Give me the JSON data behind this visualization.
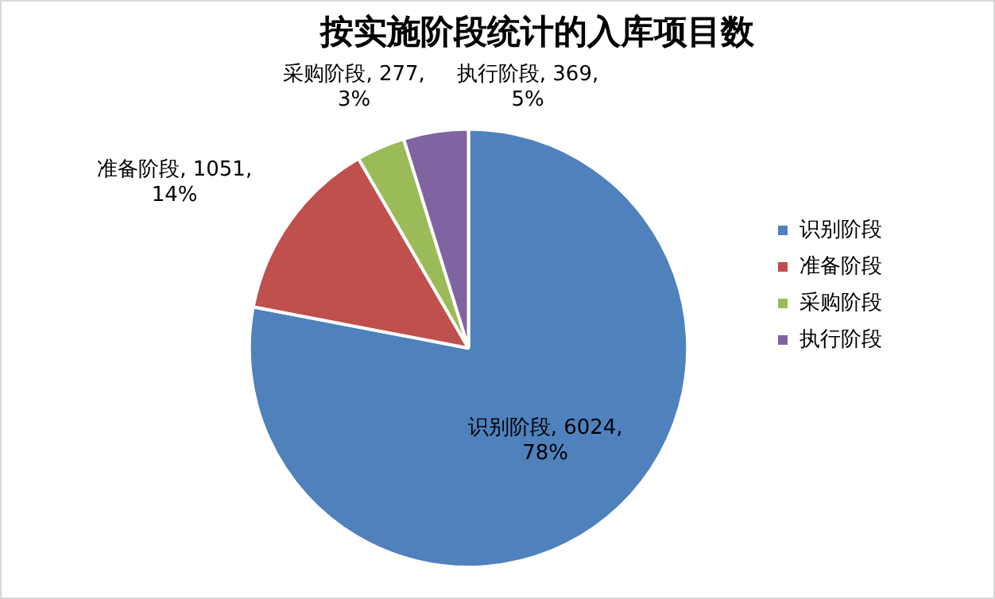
{
  "chart_data": {
    "type": "pie",
    "title": "按实施阶段统计的入库项目数",
    "categories": [
      "识别阶段",
      "准备阶段",
      "采购阶段",
      "执行阶段"
    ],
    "values": [
      6024,
      1051,
      277,
      369
    ],
    "colors": [
      "#4f81bd",
      "#c0504d",
      "#9bbb59",
      "#8064a2"
    ],
    "value_labels": [
      "识别阶段, 6024, 78%",
      "准备阶段, 1051, 14%",
      "采购阶段, 277, 3%",
      "执行阶段, 369, 5%"
    ],
    "legend": "right"
  }
}
